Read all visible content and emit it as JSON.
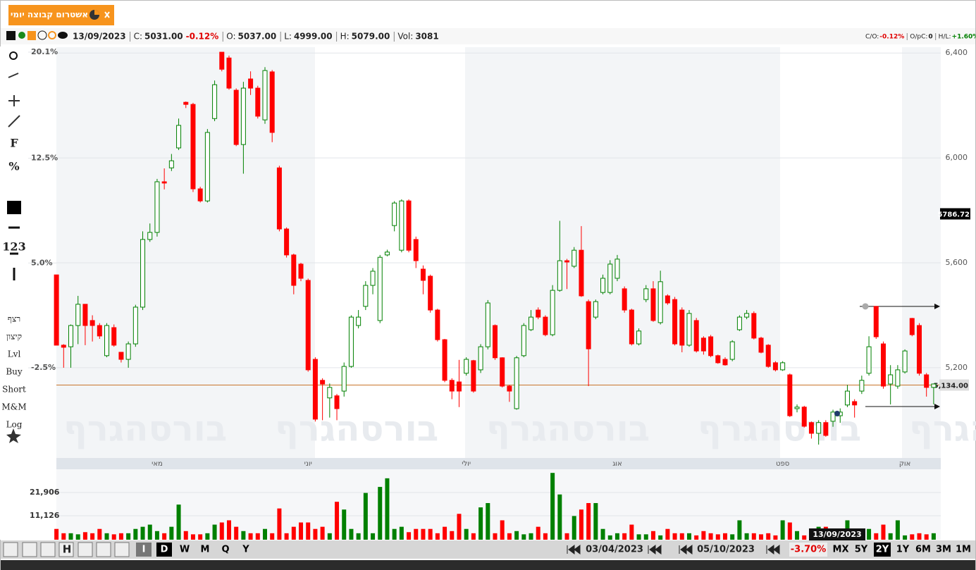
{
  "tab": {
    "title": "אשטרום קבוצה יומי"
  },
  "header": {
    "date": "13/09/2023",
    "fields": [
      {
        "label": "C:",
        "value": "5031.00",
        "change": "-0.12%"
      },
      {
        "label": "O:",
        "value": "5037.00"
      },
      {
        "label": "L:",
        "value": "4999.00"
      },
      {
        "label": "H:",
        "value": "5079.00"
      },
      {
        "label": "Vol:",
        "value": "3081"
      }
    ],
    "stats": [
      {
        "label": "C/O:",
        "value": "-0.12%"
      },
      {
        "label": "O/pC:",
        "value": "0"
      },
      {
        "label": "H/L:",
        "value": "+1.60%"
      }
    ]
  },
  "toolbar": [
    "F",
    "%",
    "123",
    "רצף",
    "קיצון",
    "Lvl",
    "Buy",
    "Short",
    "M&M",
    "Log"
  ],
  "watermark": "בורסהגרף",
  "bottom_bar": {
    "chart_button": "H",
    "intervals": [
      "I",
      "D",
      "W",
      "M",
      "Q",
      "Y"
    ],
    "range_start": "03/04/2023",
    "range_end": "05/10/2023",
    "range_change": "-3.70%",
    "periods": [
      "MX",
      "5Y",
      "2Y",
      "1Y",
      "6M",
      "3M",
      "1M"
    ]
  },
  "chart_data": [
    {
      "type": "candlestick",
      "up_color": "#008000",
      "down_color": "#ff0000",
      "grid": true,
      "categories": [
        null,
        null,
        null,
        null,
        null,
        null,
        null,
        null,
        null,
        null,
        null,
        null,
        null,
        null,
        "מאי",
        null,
        null,
        null,
        null,
        null,
        null,
        null,
        null,
        null,
        null,
        null,
        null,
        null,
        null,
        null,
        null,
        null,
        null,
        null,
        null,
        "יוני",
        null,
        null,
        null,
        null,
        null,
        null,
        null,
        null,
        null,
        null,
        null,
        null,
        null,
        null,
        null,
        null,
        null,
        null,
        null,
        null,
        null,
        "יולי",
        null,
        null,
        null,
        null,
        null,
        null,
        null,
        null,
        null,
        null,
        null,
        null,
        null,
        null,
        null,
        null,
        null,
        null,
        null,
        null,
        "אוג",
        null,
        null,
        null,
        null,
        null,
        null,
        null,
        null,
        null,
        null,
        null,
        null,
        null,
        null,
        null,
        null,
        null,
        null,
        null,
        null,
        null,
        null,
        "ספט",
        null,
        null,
        null,
        null,
        null,
        null,
        null,
        null,
        null,
        null,
        null,
        null,
        null,
        null,
        null,
        null,
        "אוק",
        null,
        null,
        null,
        null
      ],
      "open": [
        5554,
        5286,
        5280,
        5361,
        5442,
        5380,
        5361,
        5246,
        5353,
        5259,
        5232,
        5291,
        5431,
        5689,
        5716,
        5909,
        5962,
        6038,
        6212,
        6204,
        5882,
        5836,
        6150,
        6403,
        6381,
        6258,
        6051,
        6301,
        6266,
        6145,
        6328,
        5962,
        5729,
        5630,
        5595,
        5533,
        5232,
        5152,
        5085,
        5093,
        5111,
        5205,
        5361,
        5434,
        5514,
        5380,
        5630,
        5742,
        5648,
        5836,
        5689,
        5576,
        5549,
        5420,
        5307,
        5152,
        5146,
        5179,
        5227,
        5192,
        5280,
        5361,
        5238,
        5130,
        5044,
        5246,
        5345,
        5420,
        5393,
        5326,
        5495,
        5608,
        5587,
        5648,
        5452,
        5393,
        5487,
        5487,
        5541,
        5501,
        5420,
        5291,
        5460,
        5501,
        5372,
        5474,
        5460,
        5420,
        5286,
        5380,
        5313,
        5318,
        5246,
        5232,
        5232,
        5345,
        5393,
        5407,
        5313,
        5286,
        5219,
        5192,
        5173,
        5044,
        5050,
        4991,
        4950,
        4991,
        4996,
        5017,
        5058,
        5071,
        5111,
        5179,
        5434,
        5291,
        5138,
        5130,
        5184,
        5388,
        5361,
        5173,
        5125
      ],
      "high": [
        5554,
        5290,
        5365,
        5474,
        5442,
        5400,
        5370,
        5370,
        5365,
        5260,
        5300,
        5440,
        5720,
        5750,
        5920,
        5960,
        6015,
        6150,
        6215,
        6210,
        5890,
        6110,
        6295,
        6403,
        6390,
        6265,
        6290,
        6330,
        6275,
        6346,
        6335,
        5970,
        5735,
        5635,
        5600,
        5540,
        5240,
        5160,
        5140,
        5100,
        5220,
        5400,
        5420,
        5530,
        5580,
        5630,
        5650,
        5835,
        5842,
        5842,
        5700,
        5590,
        5555,
        5425,
        5310,
        5160,
        5230,
        5240,
        5230,
        5290,
        5458,
        5365,
        5240,
        5135,
        5245,
        5370,
        5420,
        5430,
        5400,
        5515,
        5760,
        5615,
        5660,
        5740,
        5460,
        5460,
        5555,
        5610,
        5630,
        5510,
        5425,
        5350,
        5515,
        5530,
        5570,
        5480,
        5470,
        5430,
        5420,
        5390,
        5320,
        5325,
        5250,
        5240,
        5305,
        5400,
        5420,
        5415,
        5318,
        5290,
        5225,
        5225,
        5178,
        5060,
        5055,
        4995,
        5000,
        5000,
        5040,
        5045,
        5135,
        5080,
        5170,
        5320,
        5434,
        5300,
        5210,
        5210,
        5270,
        5390,
        5370,
        5180,
        5140
      ],
      "low": [
        5286,
        5200,
        5200,
        5290,
        5286,
        5300,
        5310,
        5240,
        5280,
        5220,
        5200,
        5280,
        5420,
        5680,
        5700,
        5880,
        5950,
        6030,
        6190,
        5870,
        5830,
        5830,
        6140,
        6330,
        6260,
        6045,
        5940,
        6240,
        6150,
        6130,
        6060,
        5720,
        5620,
        5480,
        5530,
        5185,
        4995,
        5000,
        5010,
        5000,
        5090,
        5200,
        5350,
        5420,
        5480,
        5370,
        5625,
        5720,
        5640,
        5640,
        5580,
        5480,
        5410,
        5300,
        5145,
        5080,
        5050,
        5170,
        5105,
        5180,
        5270,
        5230,
        5125,
        5070,
        5040,
        5240,
        5340,
        5385,
        5320,
        5320,
        5490,
        5500,
        5580,
        5470,
        5130,
        5385,
        5480,
        5480,
        5530,
        5410,
        5285,
        5285,
        5450,
        5375,
        5365,
        5440,
        5285,
        5259,
        5280,
        5258,
        5250,
        5240,
        5215,
        5208,
        5225,
        5340,
        5385,
        5308,
        5255,
        5200,
        5186,
        5188,
        5012,
        5030,
        4972,
        4930,
        4907,
        4937,
        4975,
        4990,
        5050,
        5010,
        5100,
        5170,
        5310,
        5120,
        5060,
        5120,
        5178,
        5320,
        5170,
        5090,
        5060
      ],
      "close": [
        5286,
        5278,
        5361,
        5442,
        5361,
        5361,
        5321,
        5361,
        5286,
        5232,
        5291,
        5431,
        5689,
        5716,
        5909,
        5904,
        5989,
        6124,
        6204,
        5882,
        5836,
        6097,
        6279,
        6338,
        6266,
        6051,
        6266,
        6266,
        6159,
        6333,
        6097,
        5729,
        5630,
        5514,
        5541,
        5192,
        5004,
        5138,
        5125,
        5044,
        5205,
        5393,
        5393,
        5514,
        5568,
        5621,
        5641,
        5828,
        5836,
        5648,
        5608,
        5533,
        5420,
        5307,
        5152,
        5111,
        5111,
        5232,
        5111,
        5280,
        5447,
        5238,
        5130,
        5111,
        5238,
        5361,
        5393,
        5393,
        5326,
        5495,
        5608,
        5603,
        5648,
        5474,
        5272,
        5452,
        5541,
        5595,
        5614,
        5420,
        5291,
        5340,
        5501,
        5380,
        5528,
        5447,
        5291,
        5286,
        5407,
        5264,
        5264,
        5246,
        5219,
        5211,
        5299,
        5393,
        5407,
        5313,
        5259,
        5205,
        5192,
        5219,
        5017,
        5050,
        4977,
        4950,
        4991,
        4942,
        5031,
        5031,
        5111,
        5058,
        5152,
        5280,
        5318,
        5130,
        5173,
        5192,
        5264,
        5326,
        5179,
        5125,
        5138
      ],
      "ylim": [
        4856,
        6422
      ],
      "yticks": [
        {
          "value": 5200,
          "label": "5,200"
        },
        {
          "value": 5600,
          "label": "5,600"
        },
        {
          "value": 6000,
          "label": "6,000"
        },
        {
          "value": 6400,
          "label": "6,400"
        }
      ],
      "y2lim": [
        -8.96,
        20.45
      ],
      "y2ticks": [
        {
          "value": -2.5,
          "label": "-2.5%"
        },
        {
          "value": 5,
          "label": "5.0%"
        },
        {
          "value": 12.5,
          "label": "12.5%"
        },
        {
          "value": 20.1,
          "label": "20.1%"
        }
      ],
      "price_line": {
        "value": 5134,
        "label": "5,134.00"
      },
      "marker_price": 5786.72,
      "arrow_levels": [
        5434,
        5052
      ]
    },
    {
      "type": "bar",
      "grid": true,
      "values": [
        5000,
        3000,
        3000,
        2500,
        3500,
        3000,
        5000,
        3000,
        2500,
        3000,
        3000,
        5000,
        6000,
        7000,
        4000,
        3000,
        6000,
        16300,
        4000,
        2500,
        2500,
        3000,
        7000,
        8000,
        9000,
        6000,
        4000,
        3000,
        3000,
        5000,
        3000,
        14500,
        3000,
        6000,
        8000,
        8000,
        5000,
        6000,
        3000,
        17600,
        14000,
        5000,
        3000,
        21700,
        3000,
        24500,
        28500,
        5000,
        6000,
        3500,
        5000,
        5000,
        5000,
        3000,
        6000,
        4000,
        12000,
        5000,
        3000,
        15000,
        17000,
        3000,
        9000,
        3000,
        4000,
        2500,
        3000,
        6000,
        3000,
        31000,
        21000,
        3000,
        11000,
        14000,
        17000,
        17000,
        5000,
        2000,
        3000,
        3000,
        7000,
        2500,
        2500,
        4000,
        2000,
        5000,
        3000,
        3000,
        3000,
        2000,
        4000,
        3000,
        2500,
        3000,
        2500,
        9000,
        3000,
        3000,
        2500,
        3000,
        2000,
        9000,
        8000,
        4000,
        2000,
        3000,
        6000,
        6000,
        5000,
        4000,
        9000,
        3000,
        2500,
        5000,
        3000,
        7000,
        3000,
        9000,
        2000,
        2500,
        3000,
        2500,
        3000
      ],
      "ylim": [
        0,
        32700
      ],
      "yticks": [
        {
          "value": 11126,
          "label": "11,126"
        },
        {
          "value": 21906,
          "label": "21,906"
        }
      ]
    }
  ]
}
